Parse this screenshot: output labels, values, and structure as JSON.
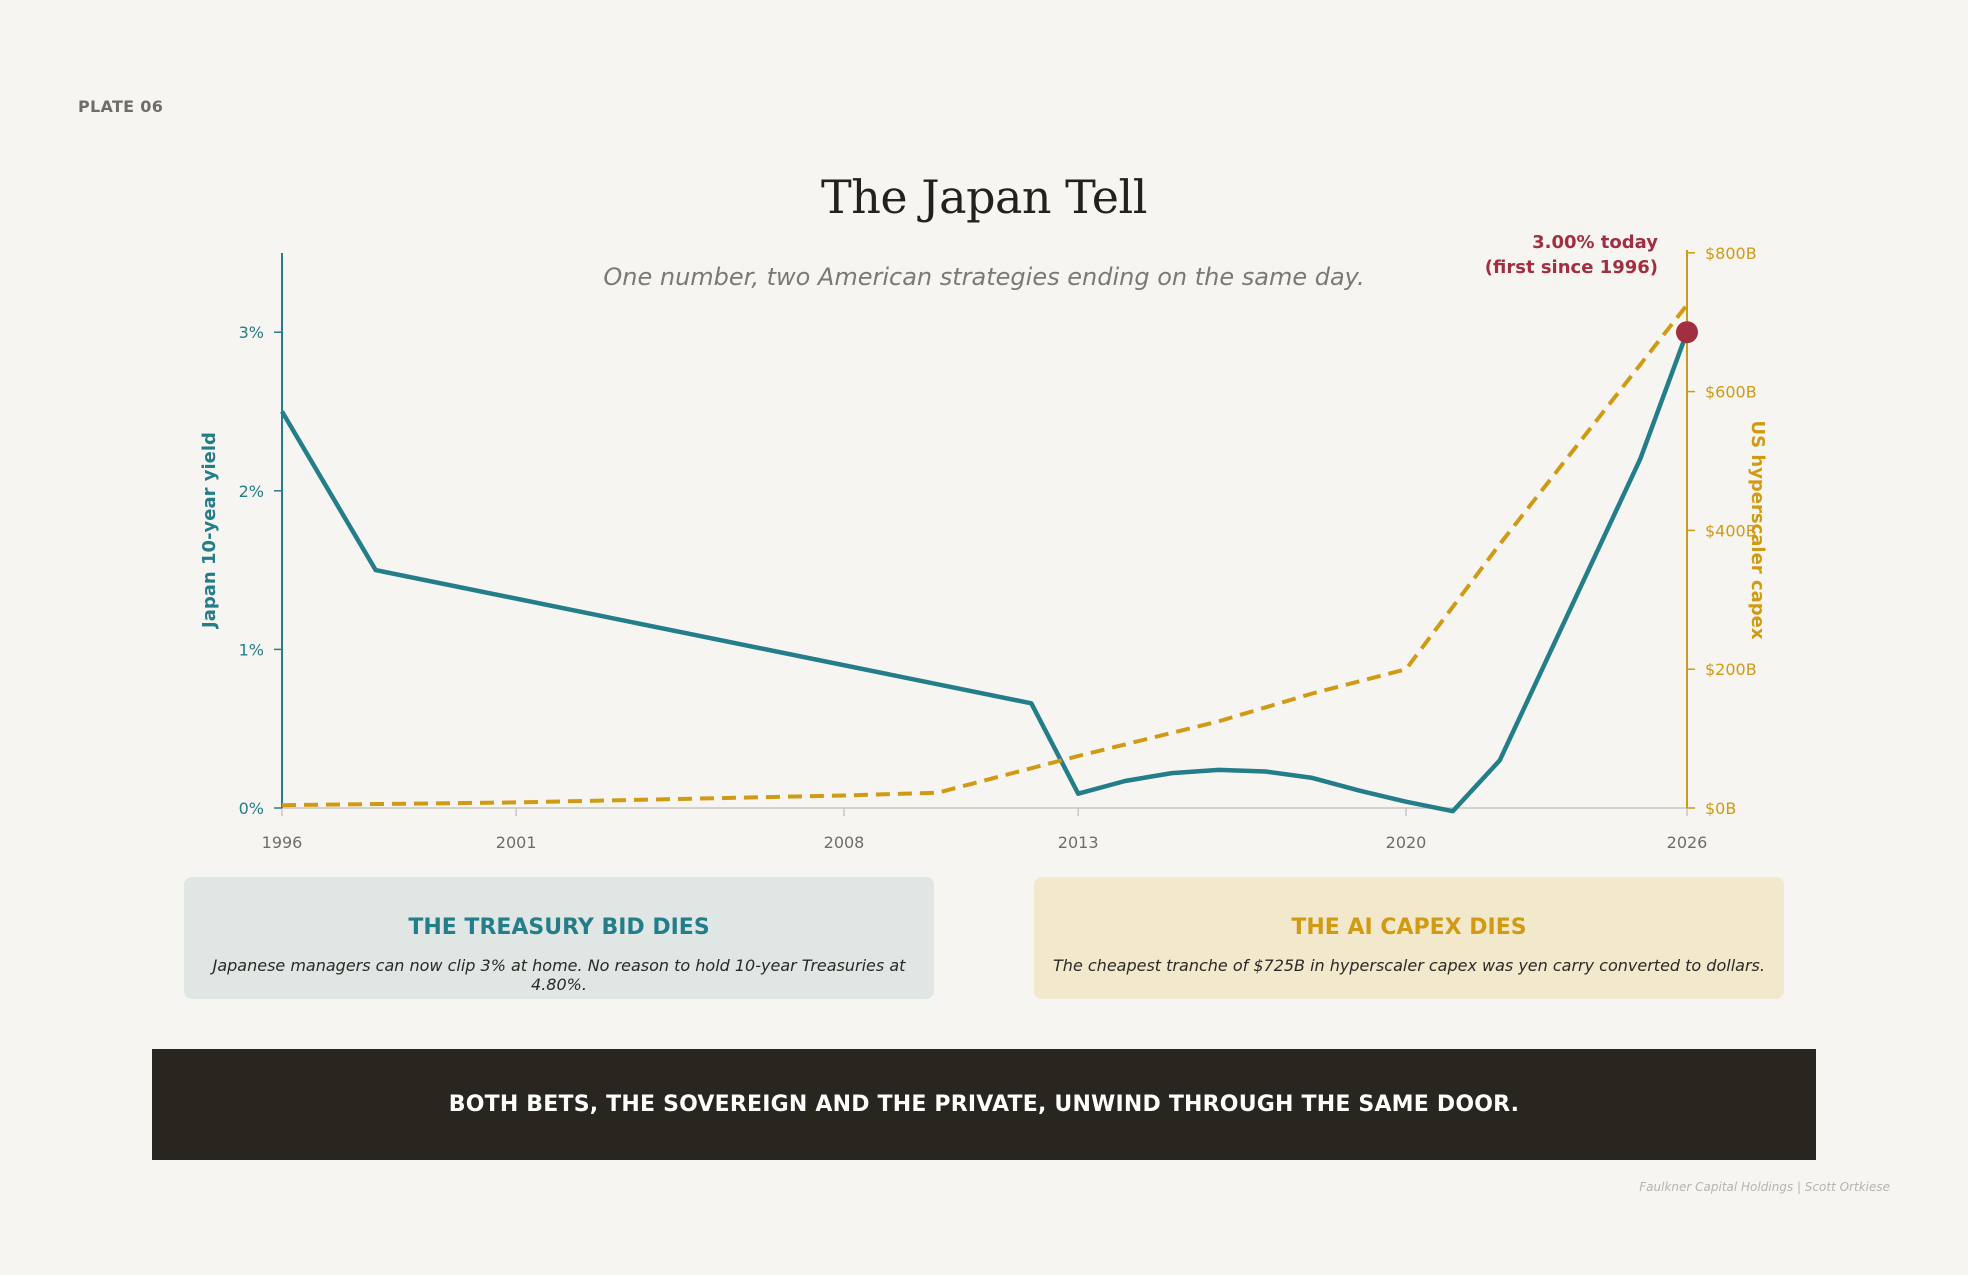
{
  "plate_label": "PLATE 06",
  "chart_data": {
    "type": "line",
    "title": "The Japan Tell",
    "subtitle": "One number, two American strategies ending on the same day.",
    "x_ticks": [
      "1996",
      "2001",
      "2008",
      "2013",
      "2020",
      "2026"
    ],
    "y_left": {
      "label": "Japan 10-year yield",
      "min": 0,
      "max": 3.5,
      "ticks": [
        {
          "v": 0,
          "t": "0%"
        },
        {
          "v": 1,
          "t": "1%"
        },
        {
          "v": 2,
          "t": "2%"
        },
        {
          "v": 3,
          "t": "3%"
        }
      ]
    },
    "y_right": {
      "label": "US hyperscaler capex",
      "min": 0,
      "max": 800,
      "ticks": [
        {
          "v": 0,
          "t": "$0B"
        },
        {
          "v": 200,
          "t": "$200B"
        },
        {
          "v": 400,
          "t": "$400B"
        },
        {
          "v": 600,
          "t": "$600B"
        },
        {
          "v": 800,
          "t": "$800B"
        }
      ]
    },
    "series": [
      {
        "name": "Japan 10-year yield",
        "axis": "left",
        "color": "#237e89",
        "style": "solid",
        "points": [
          [
            1996,
            2.5
          ],
          [
            1998,
            1.5
          ],
          [
            2012,
            0.66
          ],
          [
            2013,
            0.09
          ],
          [
            2014,
            0.17
          ],
          [
            2015,
            0.22
          ],
          [
            2016,
            0.24
          ],
          [
            2017,
            0.23
          ],
          [
            2018,
            0.19
          ],
          [
            2019,
            0.11
          ],
          [
            2020,
            0.04
          ],
          [
            2021,
            -0.02
          ],
          [
            2022,
            0.3
          ],
          [
            2025,
            2.2
          ],
          [
            2026,
            3.0
          ]
        ]
      },
      {
        "name": "US hyperscaler capex",
        "axis": "right",
        "color": "#d19a14",
        "style": "dashed",
        "points": [
          [
            1996,
            4
          ],
          [
            2001,
            8
          ],
          [
            2008,
            18
          ],
          [
            2010,
            22
          ],
          [
            2013,
            75
          ],
          [
            2016,
            125
          ],
          [
            2018,
            165
          ],
          [
            2020,
            200
          ],
          [
            2022,
            380
          ],
          [
            2026,
            725
          ]
        ]
      }
    ],
    "annotation": {
      "line1": "3.00% today",
      "line2": "(first since 1996)",
      "x": 2026,
      "y": 3.0,
      "color": "#a12f40"
    }
  },
  "cards": [
    {
      "title": "THE TREASURY BID DIES",
      "text": "Japanese managers can now clip 3% at home. No reason to hold 10-year Treasuries at 4.80%."
    },
    {
      "title": "THE AI CAPEX DIES",
      "text": "The cheapest tranche of $725B in hyperscaler capex was yen carry converted to dollars."
    }
  ],
  "banner": "BOTH BETS, THE SOVEREIGN AND THE PRIVATE, UNWIND THROUGH THE SAME DOOR.",
  "credit": "Faulkner Capital Holdings | Scott Ortkiese"
}
